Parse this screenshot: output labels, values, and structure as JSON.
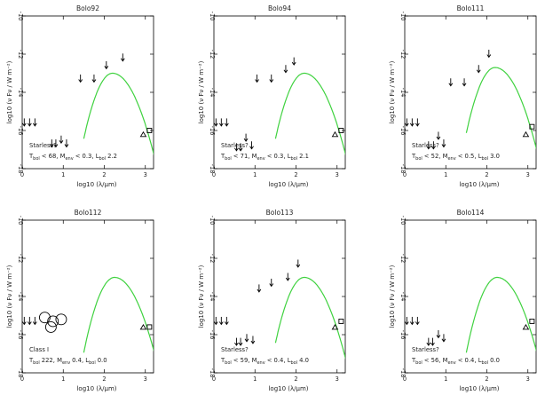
{
  "chart_data": [
    {
      "type": "scatter",
      "title": "Bolo92",
      "xlabel": "log10 (λ/μm)",
      "ylabel": "log10 (ν Fν / W m⁻²)",
      "xlim": [
        0,
        3.2
      ],
      "ylim": [
        -18,
        -10
      ],
      "xticks": [
        0,
        1,
        2,
        3
      ],
      "yticks": [
        -10,
        -12,
        -14,
        -16,
        -18
      ],
      "upper_limits": [
        [
          0.05,
          -15.6
        ],
        [
          0.18,
          -15.6
        ],
        [
          0.31,
          -15.6
        ],
        [
          0.72,
          -16.7
        ],
        [
          0.82,
          -16.7
        ],
        [
          0.95,
          -16.5
        ],
        [
          1.08,
          -16.7
        ],
        [
          1.42,
          -13.3
        ],
        [
          1.75,
          -13.3
        ],
        [
          2.05,
          -12.6
        ],
        [
          2.45,
          -12.2
        ]
      ],
      "triangle": [
        2.95,
        -16.2
      ],
      "square": [
        3.1,
        -16.0
      ],
      "fit_curve": {
        "peak_x": 2.2,
        "peak_y": -13.0
      },
      "annotation": {
        "class": "Starless?",
        "tbol": "T",
        "tbol_sub": "bol",
        "tbol_val": "< 68, M",
        "menv_sub": "env",
        "menv_val": "< 0.3, L",
        "lbol_sub": "bol",
        "lbol_val": "2.2"
      }
    },
    {
      "type": "scatter",
      "title": "Bolo94",
      "xlabel": "log10 (λ/μm)",
      "ylabel": "log10 (ν Fν / W m⁻²)",
      "xlim": [
        0,
        3.2
      ],
      "ylim": [
        -18,
        -10
      ],
      "xticks": [
        0,
        1,
        2,
        3
      ],
      "yticks": [
        -10,
        -12,
        -14,
        -16,
        -18
      ],
      "upper_limits": [
        [
          0.05,
          -15.6
        ],
        [
          0.18,
          -15.6
        ],
        [
          0.31,
          -15.6
        ],
        [
          0.55,
          -16.9
        ],
        [
          0.65,
          -16.9
        ],
        [
          0.78,
          -16.4
        ],
        [
          0.92,
          -16.8
        ],
        [
          1.05,
          -13.3
        ],
        [
          1.4,
          -13.3
        ],
        [
          1.75,
          -12.8
        ],
        [
          1.95,
          -12.4
        ]
      ],
      "triangle": [
        2.95,
        -16.2
      ],
      "square": [
        3.1,
        -16.0
      ],
      "fit_curve": {
        "peak_x": 2.2,
        "peak_y": -13.0
      },
      "annotation": {
        "class": "Starless?",
        "tbol": "T",
        "tbol_sub": "bol",
        "tbol_val": "< 71, M",
        "menv_sub": "env",
        "menv_val": "< 0.3, L",
        "lbol_sub": "bol",
        "lbol_val": "2.1"
      }
    },
    {
      "type": "scatter",
      "title": "Bolo111",
      "xlabel": "log10 (λ/μm)",
      "ylabel": "log10 (ν Fν / W m⁻²)",
      "xlim": [
        0,
        3.2
      ],
      "ylim": [
        -18,
        -10
      ],
      "xticks": [
        0,
        1,
        2,
        3
      ],
      "yticks": [
        -10,
        -12,
        -14,
        -16,
        -18
      ],
      "upper_limits": [
        [
          0.05,
          -15.6
        ],
        [
          0.18,
          -15.6
        ],
        [
          0.31,
          -15.6
        ],
        [
          0.58,
          -16.8
        ],
        [
          0.7,
          -16.8
        ],
        [
          0.82,
          -16.3
        ],
        [
          0.95,
          -16.7
        ],
        [
          1.12,
          -13.5
        ],
        [
          1.45,
          -13.5
        ],
        [
          1.8,
          -12.8
        ],
        [
          2.05,
          -12.0
        ]
      ],
      "triangle": [
        2.95,
        -16.2
      ],
      "square": [
        3.1,
        -15.8
      ],
      "fit_curve": {
        "peak_x": 2.2,
        "peak_y": -12.7
      },
      "annotation": {
        "class": "Starless?",
        "tbol": "T",
        "tbol_sub": "bol",
        "tbol_val": "< 52, M",
        "menv_sub": "env",
        "menv_val": "< 0.5, L",
        "lbol_sub": "bol",
        "lbol_val": "3.0"
      }
    },
    {
      "type": "scatter",
      "title": "Bolo112",
      "xlabel": "log10 (λ/μm)",
      "ylabel": "log10 (ν Fν / W m⁻²)",
      "xlim": [
        0,
        3.2
      ],
      "ylim": [
        -18,
        -10
      ],
      "xticks": [
        0,
        1,
        2,
        3
      ],
      "yticks": [
        -10,
        -12,
        -14,
        -16,
        -18
      ],
      "upper_limits": [
        [
          0.05,
          -15.3
        ],
        [
          0.18,
          -15.3
        ],
        [
          0.31,
          -15.3
        ]
      ],
      "circles": [
        [
          0.55,
          -15.1
        ],
        [
          0.75,
          -15.3
        ],
        [
          0.95,
          -15.2
        ],
        [
          0.7,
          -15.6
        ]
      ],
      "triangle": [
        2.95,
        -15.6
      ],
      "square": [
        3.1,
        -15.6
      ],
      "fit_curve": {
        "peak_x": 2.25,
        "peak_y": -13.0
      },
      "annotation": {
        "class": "Class I",
        "tbol": "T",
        "tbol_sub": "bol",
        "tbol_val": "222, M",
        "menv_sub": "env",
        "menv_val": "0.4, L",
        "lbol_sub": "bol",
        "lbol_val": "0.0"
      }
    },
    {
      "type": "scatter",
      "title": "Bolo113",
      "xlabel": "log10 (λ/μm)",
      "ylabel": "log10 (ν Fν / W m⁻²)",
      "xlim": [
        0,
        3.2
      ],
      "ylim": [
        -18,
        -10
      ],
      "xticks": [
        0,
        1,
        2,
        3
      ],
      "yticks": [
        -10,
        -12,
        -14,
        -16,
        -18
      ],
      "upper_limits": [
        [
          0.05,
          -15.3
        ],
        [
          0.18,
          -15.3
        ],
        [
          0.31,
          -15.3
        ],
        [
          0.55,
          -16.4
        ],
        [
          0.65,
          -16.4
        ],
        [
          0.8,
          -16.2
        ],
        [
          0.95,
          -16.3
        ],
        [
          1.1,
          -13.6
        ],
        [
          1.4,
          -13.3
        ],
        [
          1.8,
          -13.0
        ],
        [
          2.05,
          -12.3
        ]
      ],
      "triangle": [
        2.95,
        -15.6
      ],
      "square": [
        3.1,
        -15.3
      ],
      "fit_curve": {
        "peak_x": 2.2,
        "peak_y": -13.0
      },
      "annotation": {
        "class": "Starless?",
        "tbol": "T",
        "tbol_sub": "bol",
        "tbol_val": "< 59, M",
        "menv_sub": "env",
        "menv_val": "< 0.4, L",
        "lbol_sub": "bol",
        "lbol_val": "4.0"
      }
    },
    {
      "type": "scatter",
      "title": "Bolo114",
      "xlabel": "log10 (λ/μm)",
      "ylabel": "log10 (ν Fν / W m⁻²)",
      "xlim": [
        0,
        3.2
      ],
      "ylim": [
        -18,
        -10
      ],
      "xticks": [
        0,
        1,
        2,
        3
      ],
      "yticks": [
        -10,
        -12,
        -14,
        -16,
        -18
      ],
      "upper_limits": [
        [
          0.05,
          -15.3
        ],
        [
          0.18,
          -15.3
        ],
        [
          0.31,
          -15.3
        ],
        [
          0.58,
          -16.4
        ],
        [
          0.68,
          -16.4
        ],
        [
          0.82,
          -16.0
        ],
        [
          0.95,
          -16.2
        ]
      ],
      "triangle": [
        2.95,
        -15.6
      ],
      "square": [
        3.1,
        -15.3
      ],
      "fit_curve": {
        "peak_x": 2.25,
        "peak_y": -13.0
      },
      "annotation": {
        "class": "Starless?",
        "tbol": "T",
        "tbol_sub": "bol",
        "tbol_val": "< 56, M",
        "menv_sub": "env",
        "menv_val": "< 0.4, L",
        "lbol_sub": "bol",
        "lbol_val": "0.0"
      }
    }
  ]
}
